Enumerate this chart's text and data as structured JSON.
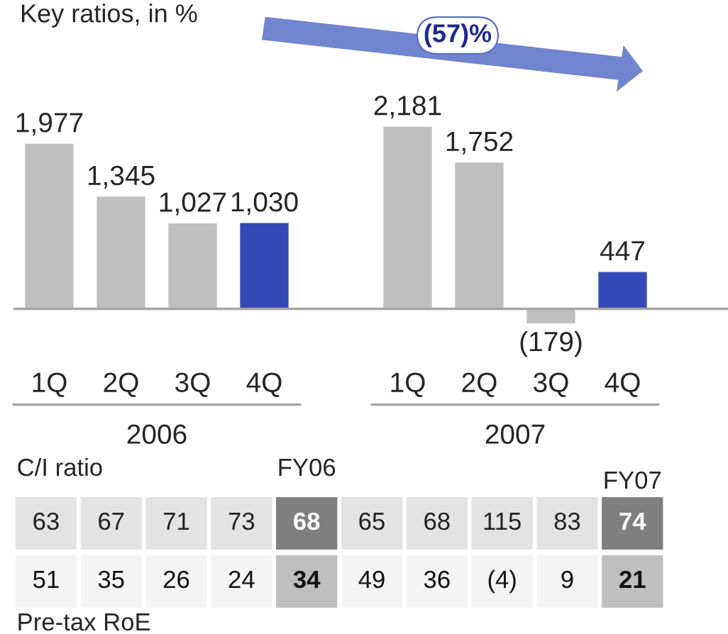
{
  "chart_data": [
    {
      "type": "bar",
      "categories": [
        "1Q",
        "2Q",
        "3Q",
        "4Q",
        null,
        "1Q",
        "2Q",
        "3Q",
        "4Q"
      ],
      "values": [
        1977,
        1345,
        1027,
        1030,
        null,
        2181,
        1752,
        -179,
        447
      ],
      "colors": [
        "#bfbfbf",
        "#bfbfbf",
        "#bfbfbf",
        "#3449b8",
        null,
        "#bfbfbf",
        "#bfbfbf",
        "#bfbfbf",
        "#3449b8"
      ],
      "value_labels": [
        "1,977",
        "1,345",
        "1,027",
        "1,030",
        null,
        "2,181",
        "1,752",
        "(179)",
        "447"
      ],
      "annotations": [
        "2006",
        "2007",
        "(57)%"
      ]
    },
    {
      "type": "other",
      "title": "Key ratios, in %",
      "categories": [
        null,
        null,
        null,
        null,
        "FY06",
        null,
        null,
        null,
        null,
        "FY07"
      ],
      "y_categories": [
        "C/I ratio",
        "Pre-tax RoE"
      ],
      "cell_labels": [
        [
          "63",
          "67",
          "71",
          "73",
          "68",
          "65",
          "68",
          "115",
          "83",
          "74"
        ],
        [
          "51",
          "35",
          "26",
          "24",
          "34",
          "49",
          "36",
          "(4)",
          "9",
          "21"
        ]
      ]
    }
  ]
}
